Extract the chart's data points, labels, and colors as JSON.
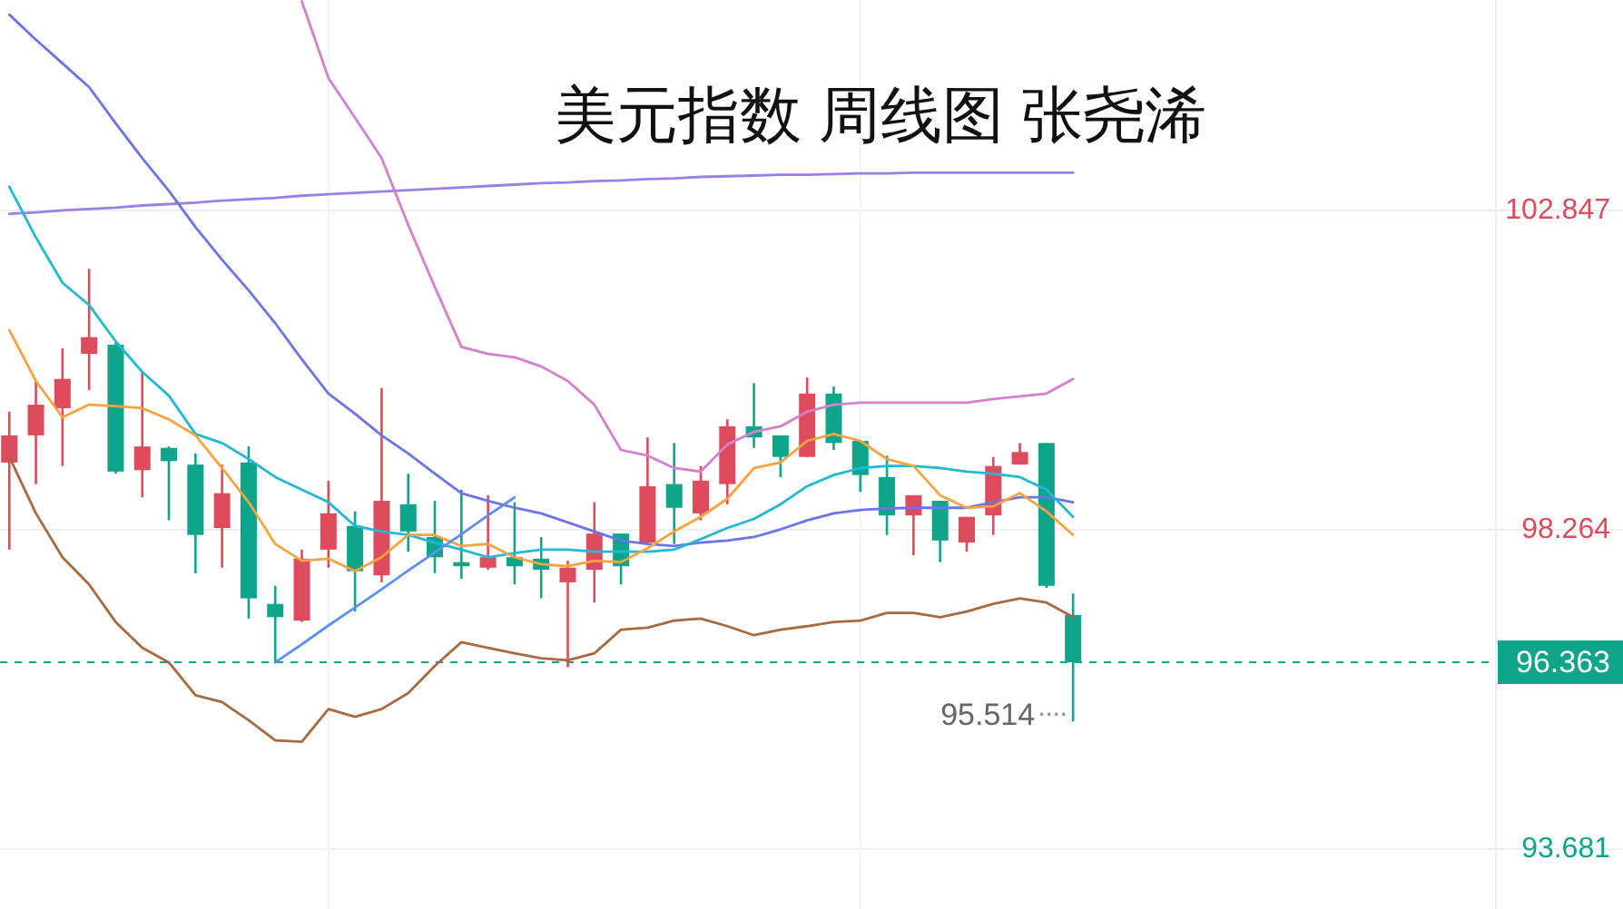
{
  "chart_data": [
    {
      "type": "candlestick",
      "title": "美元指数 周线图 张尧浠",
      "categories": [
        null,
        null,
        null,
        null,
        null,
        null,
        null,
        null,
        null,
        null,
        null,
        null,
        null,
        null,
        null,
        null,
        null,
        null,
        null,
        null,
        null,
        null,
        null,
        null,
        null,
        null,
        null,
        null,
        null,
        null,
        null,
        null,
        null,
        null,
        null,
        null,
        null,
        null,
        null,
        null,
        null
      ],
      "ohlc": [
        [
          99.23,
          99.96,
          97.98,
          99.62
        ],
        [
          99.62,
          100.4,
          98.92,
          100.06
        ],
        [
          100.01,
          100.87,
          99.18,
          100.43
        ],
        [
          100.79,
          102.01,
          100.27,
          101.03
        ],
        [
          100.92,
          100.95,
          99.07,
          99.1
        ],
        [
          99.12,
          100.53,
          98.73,
          99.46
        ],
        [
          99.44,
          99.46,
          98.4,
          99.25
        ],
        [
          99.2,
          99.36,
          97.64,
          98.19
        ],
        [
          98.29,
          99.2,
          97.72,
          98.79
        ],
        [
          99.23,
          99.46,
          96.99,
          97.28
        ],
        [
          97.2,
          97.46,
          96.36,
          97.01
        ],
        [
          96.96,
          97.98,
          96.94,
          97.85
        ],
        [
          97.98,
          98.97,
          97.72,
          98.5
        ],
        [
          98.32,
          98.53,
          97.09,
          97.67
        ],
        [
          97.61,
          100.3,
          97.51,
          98.68
        ],
        [
          98.63,
          99.07,
          97.95,
          98.24
        ],
        [
          98.16,
          98.68,
          97.64,
          97.87
        ],
        [
          97.8,
          98.84,
          97.56,
          97.74
        ],
        [
          97.72,
          98.76,
          97.69,
          97.87
        ],
        [
          97.87,
          98.66,
          97.48,
          97.74
        ],
        [
          97.85,
          98.16,
          97.28,
          97.69
        ],
        [
          97.51,
          97.82,
          96.29,
          97.72
        ],
        [
          97.69,
          98.66,
          97.22,
          98.21
        ],
        [
          98.21,
          98.21,
          97.48,
          97.74
        ],
        [
          98.08,
          99.59,
          98.06,
          98.89
        ],
        [
          98.92,
          99.51,
          98.06,
          98.58
        ],
        [
          98.5,
          99.18,
          98.4,
          98.97
        ],
        [
          98.92,
          99.85,
          98.63,
          99.75
        ],
        [
          99.75,
          100.37,
          99.44,
          99.59
        ],
        [
          99.62,
          99.62,
          99.02,
          99.31
        ],
        [
          99.31,
          100.45,
          99.31,
          100.22
        ],
        [
          100.22,
          100.32,
          99.41,
          99.51
        ],
        [
          99.54,
          99.54,
          98.81,
          99.05
        ],
        [
          99.02,
          99.33,
          98.19,
          98.47
        ],
        [
          98.47,
          98.76,
          97.9,
          98.76
        ],
        [
          98.68,
          98.68,
          97.8,
          98.11
        ],
        [
          98.08,
          98.45,
          97.95,
          98.45
        ],
        [
          98.47,
          99.31,
          98.19,
          99.18
        ],
        [
          99.2,
          99.51,
          99.2,
          99.38
        ],
        [
          99.51,
          99.51,
          97.43,
          97.46
        ],
        [
          97.04,
          97.35,
          95.514,
          96.363
        ]
      ],
      "colors": [
        "#dd4b5c",
        "#dd4b5c",
        "#dd4b5c",
        "#dd4b5c",
        "#0ea58a",
        "#dd4b5c",
        "#0ea58a",
        "#0ea58a",
        "#dd4b5c",
        "#0ea58a",
        "#0ea58a",
        "#dd4b5c",
        "#dd4b5c",
        "#0ea58a",
        "#dd4b5c",
        "#0ea58a",
        "#0ea58a",
        "#0ea58a",
        "#dd4b5c",
        "#0ea58a",
        "#0ea58a",
        "#dd4b5c",
        "#dd4b5c",
        "#0ea58a",
        "#dd4b5c",
        "#0ea58a",
        "#dd4b5c",
        "#dd4b5c",
        "#0ea58a",
        "#0ea58a",
        "#dd4b5c",
        "#0ea58a",
        "#0ea58a",
        "#0ea58a",
        "#dd4b5c",
        "#0ea58a",
        "#dd4b5c",
        "#dd4b5c",
        "#dd4b5c",
        "#0ea58a",
        "#0ea58a"
      ],
      "ylim": [
        92.82,
        105.87
      ],
      "yticks": [
        93.681,
        98.264,
        102.847
      ],
      "tick_labels": "y",
      "grid": "y",
      "ref_lines": [
        {
          "axis": "y",
          "value": 96.363,
          "label": "96.363",
          "color": "#0ea58a",
          "line_style": "dashed"
        }
      ],
      "annotations": [
        "95.514"
      ],
      "series": [
        {
          "type": "line",
          "color": "#9b7fe6",
          "values": [
            102.8,
            102.82,
            102.85,
            102.87,
            102.89,
            102.92,
            102.94,
            102.96,
            102.99,
            103.01,
            103.03,
            103.06,
            103.08,
            103.1,
            103.12,
            103.14,
            103.16,
            103.18,
            103.2,
            103.22,
            103.24,
            103.25,
            103.27,
            103.28,
            103.3,
            103.31,
            103.33,
            103.34,
            103.35,
            103.36,
            103.36,
            103.37,
            103.38,
            103.38,
            103.39,
            103.39,
            103.39,
            103.39,
            103.39,
            103.39,
            103.39
          ]
        },
        {
          "type": "line",
          "color": "#d67fcf",
          "values": [
            null,
            null,
            null,
            null,
            null,
            null,
            null,
            null,
            null,
            null,
            null,
            105.85,
            104.75,
            104.18,
            103.6,
            102.64,
            101.75,
            100.89,
            100.79,
            100.74,
            100.61,
            100.4,
            100.06,
            99.41,
            99.33,
            99.15,
            99.1,
            99.49,
            99.67,
            99.75,
            99.96,
            100.06,
            100.09,
            100.09,
            100.09,
            100.09,
            100.09,
            100.14,
            100.18,
            100.22,
            100.43
          ]
        },
        {
          "type": "line",
          "color": "#6b74e8",
          "values": [
            105.66,
            105.3,
            104.96,
            104.62,
            104.1,
            103.6,
            103.13,
            102.61,
            102.14,
            101.7,
            101.23,
            100.71,
            100.22,
            99.93,
            99.62,
            99.36,
            99.07,
            98.79,
            98.68,
            98.58,
            98.5,
            98.37,
            98.24,
            98.11,
            98.06,
            98.03,
            98.08,
            98.11,
            98.16,
            98.27,
            98.4,
            98.5,
            98.55,
            98.57,
            98.58,
            98.58,
            98.58,
            98.66,
            98.73,
            98.73,
            98.66
          ]
        },
        {
          "type": "line",
          "color": "#22b8d6",
          "values": [
            103.19,
            102.46,
            101.81,
            101.49,
            100.97,
            100.53,
            100.19,
            99.64,
            99.51,
            99.28,
            99.02,
            98.84,
            98.66,
            98.32,
            98.24,
            98.19,
            98.08,
            97.98,
            97.87,
            97.93,
            97.98,
            97.98,
            97.95,
            97.95,
            97.95,
            97.98,
            98.13,
            98.29,
            98.42,
            98.63,
            98.89,
            99.05,
            99.15,
            99.18,
            99.18,
            99.15,
            99.1,
            99.07,
            99.02,
            98.84,
            98.45
          ]
        },
        {
          "type": "line",
          "color": "#f9a23f",
          "values": [
            101.13,
            100.4,
            99.88,
            100.06,
            100.04,
            100.01,
            99.85,
            99.62,
            99.15,
            98.66,
            98.06,
            97.82,
            97.85,
            97.67,
            97.87,
            98.19,
            98.19,
            98.03,
            98.06,
            97.87,
            97.77,
            97.74,
            97.82,
            97.8,
            98.0,
            98.24,
            98.45,
            98.71,
            99.15,
            99.23,
            99.54,
            99.64,
            99.54,
            99.28,
            99.18,
            98.76,
            98.58,
            98.6,
            98.79,
            98.53,
            98.19
          ]
        },
        {
          "type": "line",
          "color": "#a86a3e",
          "values": [
            99.31,
            98.5,
            97.87,
            97.48,
            96.94,
            96.57,
            96.36,
            95.89,
            95.79,
            95.53,
            95.24,
            95.22,
            95.69,
            95.58,
            95.69,
            95.92,
            96.31,
            96.65,
            96.57,
            96.49,
            96.42,
            96.39,
            96.49,
            96.83,
            96.86,
            96.96,
            96.99,
            96.88,
            96.75,
            96.83,
            96.88,
            96.94,
            96.96,
            97.07,
            97.07,
            97.01,
            97.09,
            97.2,
            97.28,
            97.22,
            97.01
          ]
        },
        {
          "type": "line",
          "color": "#5b8ff9",
          "values": [
            null,
            null,
            null,
            null,
            null,
            null,
            null,
            null,
            null,
            null,
            96.36,
            96.62,
            96.89,
            97.15,
            97.41,
            97.68,
            97.94,
            98.2,
            98.47,
            98.73,
            null,
            null,
            null,
            null,
            null,
            null,
            null,
            null,
            null,
            null,
            null,
            null,
            null,
            null,
            null,
            null,
            null,
            null,
            null,
            null,
            null
          ]
        }
      ]
    }
  ]
}
